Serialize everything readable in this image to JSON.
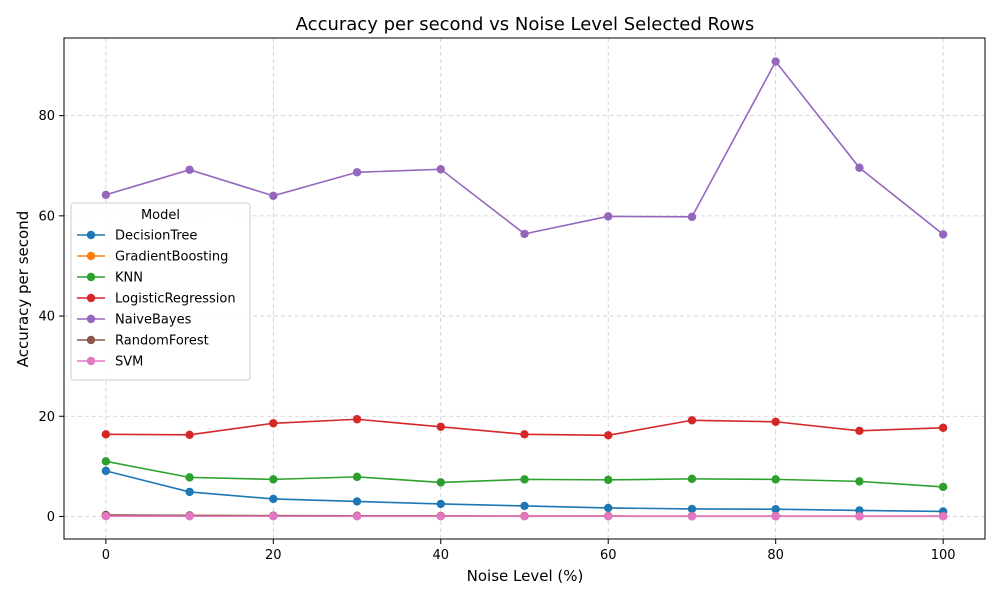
{
  "chart_data": {
    "type": "line",
    "title": "Accuracy per second vs Noise Level Selected Rows",
    "xlabel": "Noise Level (%)",
    "ylabel": "Accuracy per second",
    "x": [
      0,
      10,
      20,
      30,
      40,
      50,
      60,
      70,
      80,
      90,
      100
    ],
    "xlim": [
      -5,
      105
    ],
    "ylim": [
      -4.5,
      95.5
    ],
    "xticks": [
      "0",
      "20",
      "40",
      "60",
      "80",
      "100"
    ],
    "yticks": [
      "0",
      "20",
      "40",
      "60",
      "80"
    ],
    "grid": true,
    "legend": {
      "title": "Model",
      "placement": "center-left"
    },
    "series": [
      {
        "name": "DecisionTree",
        "color": "#1f77b4",
        "values": [
          9.1,
          4.9,
          3.5,
          3.0,
          2.5,
          2.1,
          1.7,
          1.5,
          1.45,
          1.2,
          1.0
        ]
      },
      {
        "name": "GradientBoosting",
        "color": "#ff7f0e",
        "values": [
          0.25,
          0.2,
          0.15,
          0.12,
          0.1,
          0.08,
          0.07,
          0.06,
          0.06,
          0.05,
          0.05
        ]
      },
      {
        "name": "KNN",
        "color": "#2ca02c",
        "values": [
          11.0,
          7.8,
          7.4,
          7.9,
          6.8,
          7.4,
          7.3,
          7.5,
          7.4,
          7.0,
          5.9
        ]
      },
      {
        "name": "LogisticRegression",
        "color": "#d62728",
        "values": [
          16.4,
          16.3,
          18.6,
          19.4,
          17.9,
          16.4,
          16.2,
          19.2,
          18.9,
          17.1,
          17.7
        ]
      },
      {
        "name": "NaiveBayes",
        "color": "#9467bd",
        "values": [
          64.2,
          69.2,
          64.0,
          68.7,
          69.3,
          56.4,
          59.9,
          59.8,
          90.8,
          69.6,
          56.3
        ]
      },
      {
        "name": "RandomForest",
        "color": "#8c564b",
        "values": [
          0.3,
          0.2,
          0.15,
          0.12,
          0.1,
          0.08,
          0.07,
          0.06,
          0.06,
          0.05,
          0.05
        ]
      },
      {
        "name": "SVM",
        "color": "#e377c2",
        "values": [
          0.05,
          0.04,
          0.04,
          0.03,
          0.03,
          0.03,
          0.03,
          0.02,
          0.02,
          0.02,
          0.02
        ]
      }
    ]
  }
}
